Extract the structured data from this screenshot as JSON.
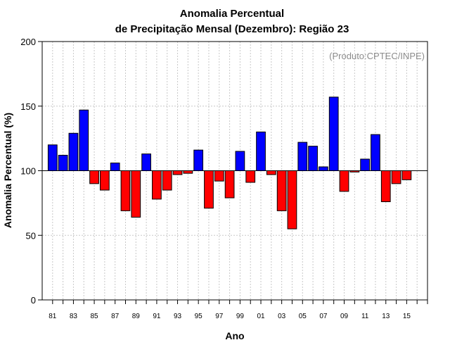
{
  "chart_data": {
    "type": "bar",
    "title_line1": "Anomalia Percentual",
    "title_line2": "de Precipitação Mensal (Dezembro): Região 23",
    "xlabel": "Ano",
    "ylabel": "Anomalia Percentual (%)",
    "credit": "(Produto:CPTEC/INPE)",
    "ylim": [
      0,
      200
    ],
    "yticks": [
      0,
      50,
      100,
      150,
      200
    ],
    "ytick_labels": [
      "0",
      "50",
      "100",
      "150",
      "200"
    ],
    "baseline": 100,
    "xlim": [
      1980,
      2017
    ],
    "years": [
      1981,
      1982,
      1983,
      1984,
      1985,
      1986,
      1987,
      1988,
      1989,
      1990,
      1991,
      1992,
      1993,
      1994,
      1995,
      1996,
      1997,
      1998,
      1999,
      2000,
      2001,
      2002,
      2003,
      2004,
      2005,
      2006,
      2007,
      2008,
      2009,
      2010,
      2011,
      2012,
      2013,
      2014,
      2015
    ],
    "values": [
      120,
      112,
      129,
      147,
      90,
      85,
      106,
      69,
      64,
      113,
      78,
      85,
      97,
      98,
      116,
      71,
      92,
      79,
      115,
      91,
      130,
      97,
      69,
      55,
      122,
      119,
      103,
      157,
      84,
      99,
      109,
      128,
      76,
      90,
      93
    ],
    "xtick_labels": [
      "81",
      "83",
      "85",
      "87",
      "89",
      "91",
      "93",
      "95",
      "97",
      "99",
      "01",
      "03",
      "05",
      "07",
      "09",
      "11",
      "13",
      "15"
    ],
    "colors": {
      "above": "#0000ff",
      "below": "#ff0000",
      "grid": "#c8c8c8",
      "baseline": "#000000"
    }
  }
}
